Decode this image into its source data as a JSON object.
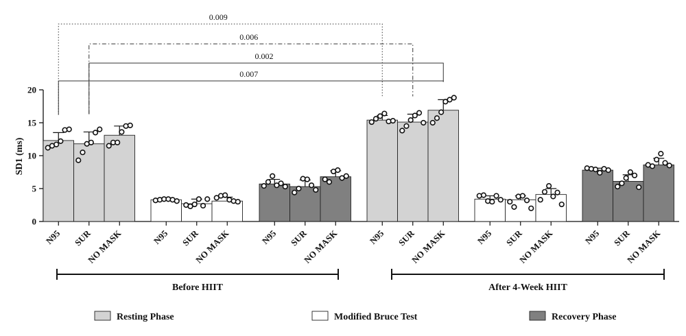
{
  "chart_data": {
    "type": "bar",
    "ylabel": "SD1 (ms)",
    "ylim": [
      0,
      20
    ],
    "yticks": [
      0,
      5,
      10,
      15,
      20
    ],
    "grid": false,
    "legend_position": "bottom",
    "colors": {
      "Resting Phase": "#d3d3d3",
      "Modified Bruce Test": "#ffffff",
      "Recovery Phase": "#808080"
    },
    "groups": [
      {
        "label": "Before HIIT",
        "phases": [
          {
            "phase": "Resting Phase",
            "bars": [
              {
                "category": "N95",
                "value": 12.3,
                "error": 1.2,
                "points": [
                  11.2,
                  11.5,
                  11.7,
                  12.2,
                  13.9,
                  14.0
                ]
              },
              {
                "category": "SUR",
                "value": 11.8,
                "error": 1.8,
                "points": [
                  9.3,
                  10.5,
                  11.8,
                  12.0,
                  13.5,
                  14.0
                ]
              },
              {
                "category": "NO MASK",
                "value": 13.1,
                "error": 1.4,
                "points": [
                  11.5,
                  12.0,
                  12.0,
                  13.6,
                  14.5,
                  14.6
                ]
              }
            ]
          },
          {
            "phase": "Modified Bruce Test",
            "bars": [
              {
                "category": "N95",
                "value": 3.3,
                "error": 0.3,
                "points": [
                  3.2,
                  3.3,
                  3.4,
                  3.4,
                  3.3,
                  3.1
                ]
              },
              {
                "category": "SUR",
                "value": 2.7,
                "error": 0.7,
                "points": [
                  2.5,
                  2.3,
                  2.6,
                  3.4,
                  2.4,
                  3.4
                ]
              },
              {
                "category": "NO MASK",
                "value": 3.1,
                "error": 0.6,
                "points": [
                  3.6,
                  3.9,
                  4.0,
                  3.3,
                  3.1,
                  3.0
                ]
              }
            ]
          },
          {
            "phase": "Recovery Phase",
            "bars": [
              {
                "category": "N95",
                "value": 5.7,
                "error": 0.7,
                "points": [
                  5.4,
                  6.0,
                  6.9,
                  5.5,
                  5.8,
                  5.3
                ]
              },
              {
                "category": "SUR",
                "value": 5.3,
                "error": 1.0,
                "points": [
                  4.4,
                  5.0,
                  6.5,
                  6.4,
                  5.5,
                  4.8
                ]
              },
              {
                "category": "NO MASK",
                "value": 6.8,
                "error": 0.9,
                "points": [
                  6.4,
                  6.0,
                  7.6,
                  7.8,
                  6.6,
                  6.9
                ]
              }
            ]
          }
        ]
      },
      {
        "label": "After 4-Week HIIT",
        "phases": [
          {
            "phase": "Resting Phase",
            "bars": [
              {
                "category": "N95",
                "value": 15.4,
                "error": 0.7,
                "points": [
                  15.1,
                  15.6,
                  16.0,
                  16.4,
                  15.2,
                  15.3
                ]
              },
              {
                "category": "SUR",
                "value": 15.1,
                "error": 1.2,
                "points": [
                  13.8,
                  14.5,
                  15.4,
                  16.1,
                  16.5,
                  15.0
                ]
              },
              {
                "category": "NO MASK",
                "value": 16.9,
                "error": 1.6,
                "points": [
                  15.0,
                  15.7,
                  16.6,
                  18.2,
                  18.5,
                  18.8
                ]
              }
            ]
          },
          {
            "phase": "Modified Bruce Test",
            "bars": [
              {
                "category": "N95",
                "value": 3.4,
                "error": 0.5,
                "points": [
                  3.9,
                  4.0,
                  3.1,
                  3.0,
                  3.9,
                  3.3
                ]
              },
              {
                "category": "SUR",
                "value": 3.3,
                "error": 0.6,
                "points": [
                  3.0,
                  2.2,
                  3.8,
                  3.9,
                  3.2,
                  2.0
                ]
              },
              {
                "category": "NO MASK",
                "value": 4.1,
                "error": 0.9,
                "points": [
                  3.3,
                  4.5,
                  5.4,
                  3.8,
                  4.4,
                  2.6
                ]
              }
            ]
          },
          {
            "phase": "Recovery Phase",
            "bars": [
              {
                "category": "N95",
                "value": 7.8,
                "error": 0.3,
                "points": [
                  8.1,
                  8.0,
                  7.9,
                  7.4,
                  8.0,
                  7.8
                ]
              },
              {
                "category": "SUR",
                "value": 6.1,
                "error": 1.0,
                "points": [
                  5.3,
                  5.8,
                  6.6,
                  7.5,
                  7.0,
                  5.2
                ]
              },
              {
                "category": "NO MASK",
                "value": 8.6,
                "error": 1.0,
                "points": [
                  8.6,
                  8.4,
                  9.4,
                  10.3,
                  8.9,
                  8.5
                ]
              }
            ]
          }
        ]
      }
    ],
    "comparisons": [
      {
        "label": "0.009",
        "from": {
          "group": 0,
          "phase": 0,
          "bar": 0
        },
        "to": {
          "group": 1,
          "phase": 0,
          "bar": 0
        },
        "style": "dotted"
      },
      {
        "label": "0.006",
        "from": {
          "group": 0,
          "phase": 0,
          "bar": 1
        },
        "to": {
          "group": 1,
          "phase": 0,
          "bar": 1
        },
        "style": "dash-dot"
      },
      {
        "label": "0.002",
        "from": {
          "group": 0,
          "phase": 0,
          "bar": 1
        },
        "to": {
          "group": 1,
          "phase": 0,
          "bar": 2
        },
        "style": "solid"
      },
      {
        "label": "0.007",
        "from": {
          "group": 0,
          "phase": 0,
          "bar": 0
        },
        "to": {
          "group": 1,
          "phase": 0,
          "bar": 2
        },
        "style": "solid"
      }
    ],
    "legend": [
      "Resting Phase",
      "Modified Bruce Test",
      "Recovery Phase"
    ]
  }
}
